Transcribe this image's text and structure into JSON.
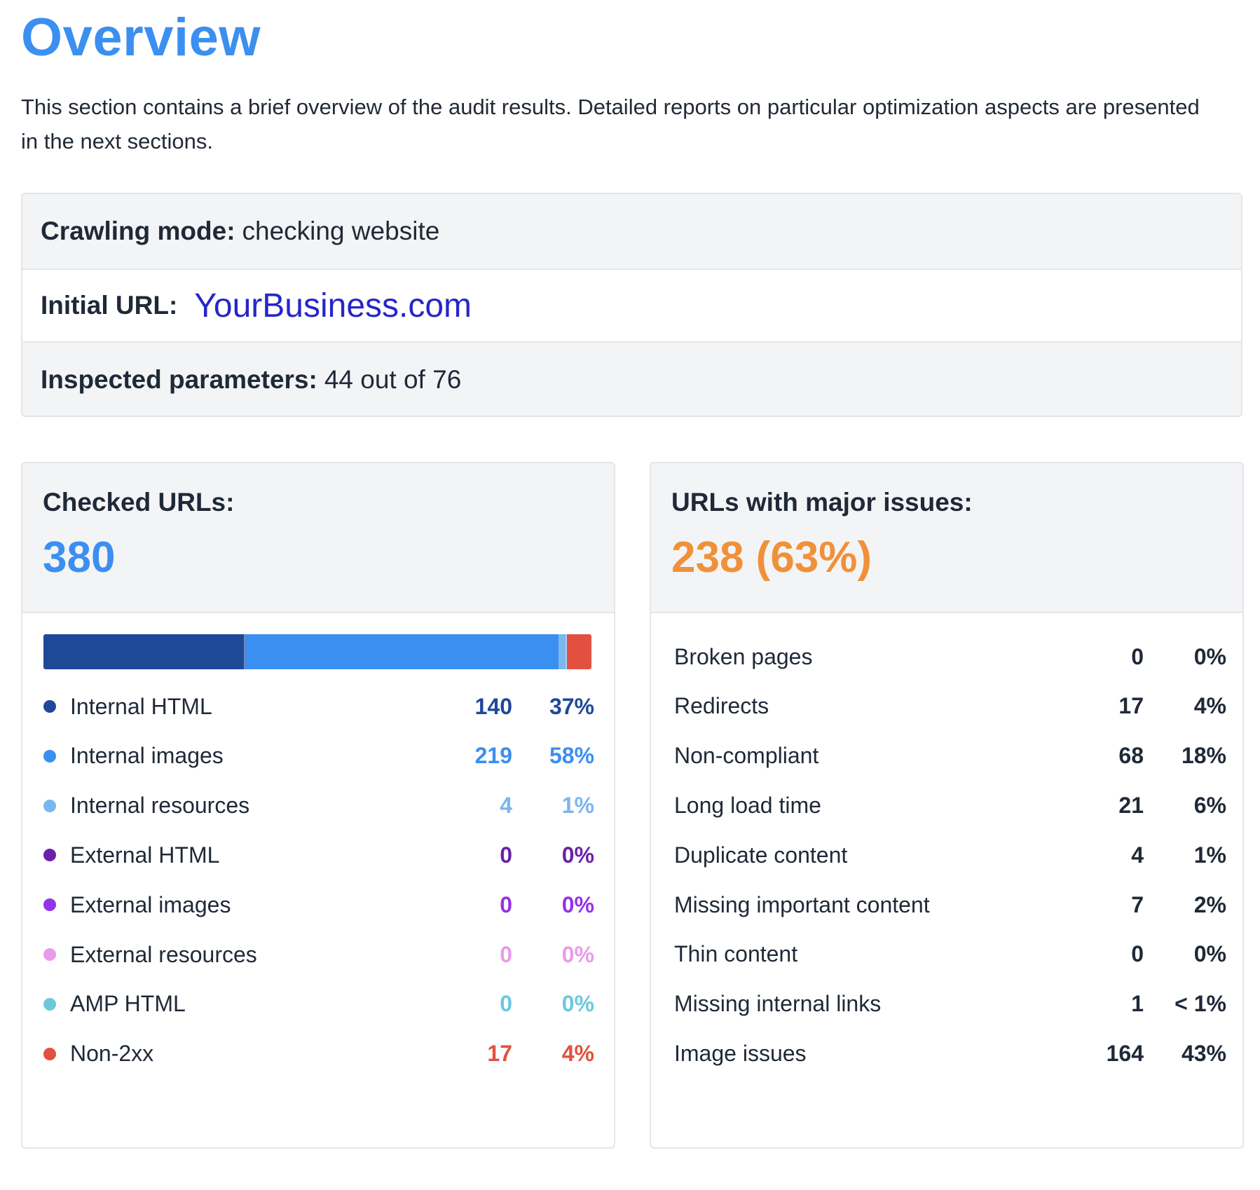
{
  "title": "Overview",
  "intro": "This section contains a brief overview of the audit results. Detailed reports on particular optimization aspects are presented in the next sections.",
  "info": {
    "crawling_mode_label": "Crawling mode:",
    "crawling_mode_value": "checking website",
    "initial_url_label": "Initial URL:",
    "initial_url_value": "YourBusiness.com",
    "inspected_label": "Inspected parameters:",
    "inspected_value": "44 out of 76"
  },
  "checked": {
    "title": "Checked URLs:",
    "total": "380",
    "total_color": "#3b8ff0",
    "segments": [
      {
        "share": 140,
        "color": "#1f4898"
      },
      {
        "share": 219,
        "color": "#3b8ff0"
      },
      {
        "share": 4,
        "color": "#7ab6f0"
      },
      {
        "share": 17,
        "color": "#e2513f"
      }
    ],
    "rows": [
      {
        "label": "Internal HTML",
        "count": "140",
        "pct": "37%",
        "color": "#1f4898"
      },
      {
        "label": "Internal images",
        "count": "219",
        "pct": "58%",
        "color": "#3b8ff0"
      },
      {
        "label": "Internal resources",
        "count": "4",
        "pct": "1%",
        "color": "#7ab6f0"
      },
      {
        "label": "External HTML",
        "count": "0",
        "pct": "0%",
        "color": "#6b21a8"
      },
      {
        "label": "External images",
        "count": "0",
        "pct": "0%",
        "color": "#9333ea"
      },
      {
        "label": "External resources",
        "count": "0",
        "pct": "0%",
        "color": "#e89bea"
      },
      {
        "label": "AMP HTML",
        "count": "0",
        "pct": "0%",
        "color": "#6cc9dc"
      },
      {
        "label": "Non-2xx",
        "count": "17",
        "pct": "4%",
        "color": "#e2513f"
      }
    ]
  },
  "issues": {
    "title": "URLs with major issues:",
    "total": "238 (63%)",
    "total_color": "#f0913a",
    "rows": [
      {
        "label": "Broken pages",
        "count": "0",
        "pct": "0%"
      },
      {
        "label": "Redirects",
        "count": "17",
        "pct": "4%"
      },
      {
        "label": "Non-compliant",
        "count": "68",
        "pct": "18%"
      },
      {
        "label": "Long load time",
        "count": "21",
        "pct": "6%"
      },
      {
        "label": "Duplicate content",
        "count": "4",
        "pct": "1%"
      },
      {
        "label": "Missing important content",
        "count": "7",
        "pct": "2%"
      },
      {
        "label": "Thin content",
        "count": "0",
        "pct": "0%"
      },
      {
        "label": "Missing internal links",
        "count": "1",
        "pct": "< 1%"
      },
      {
        "label": "Image issues",
        "count": "164",
        "pct": "43%"
      }
    ]
  }
}
